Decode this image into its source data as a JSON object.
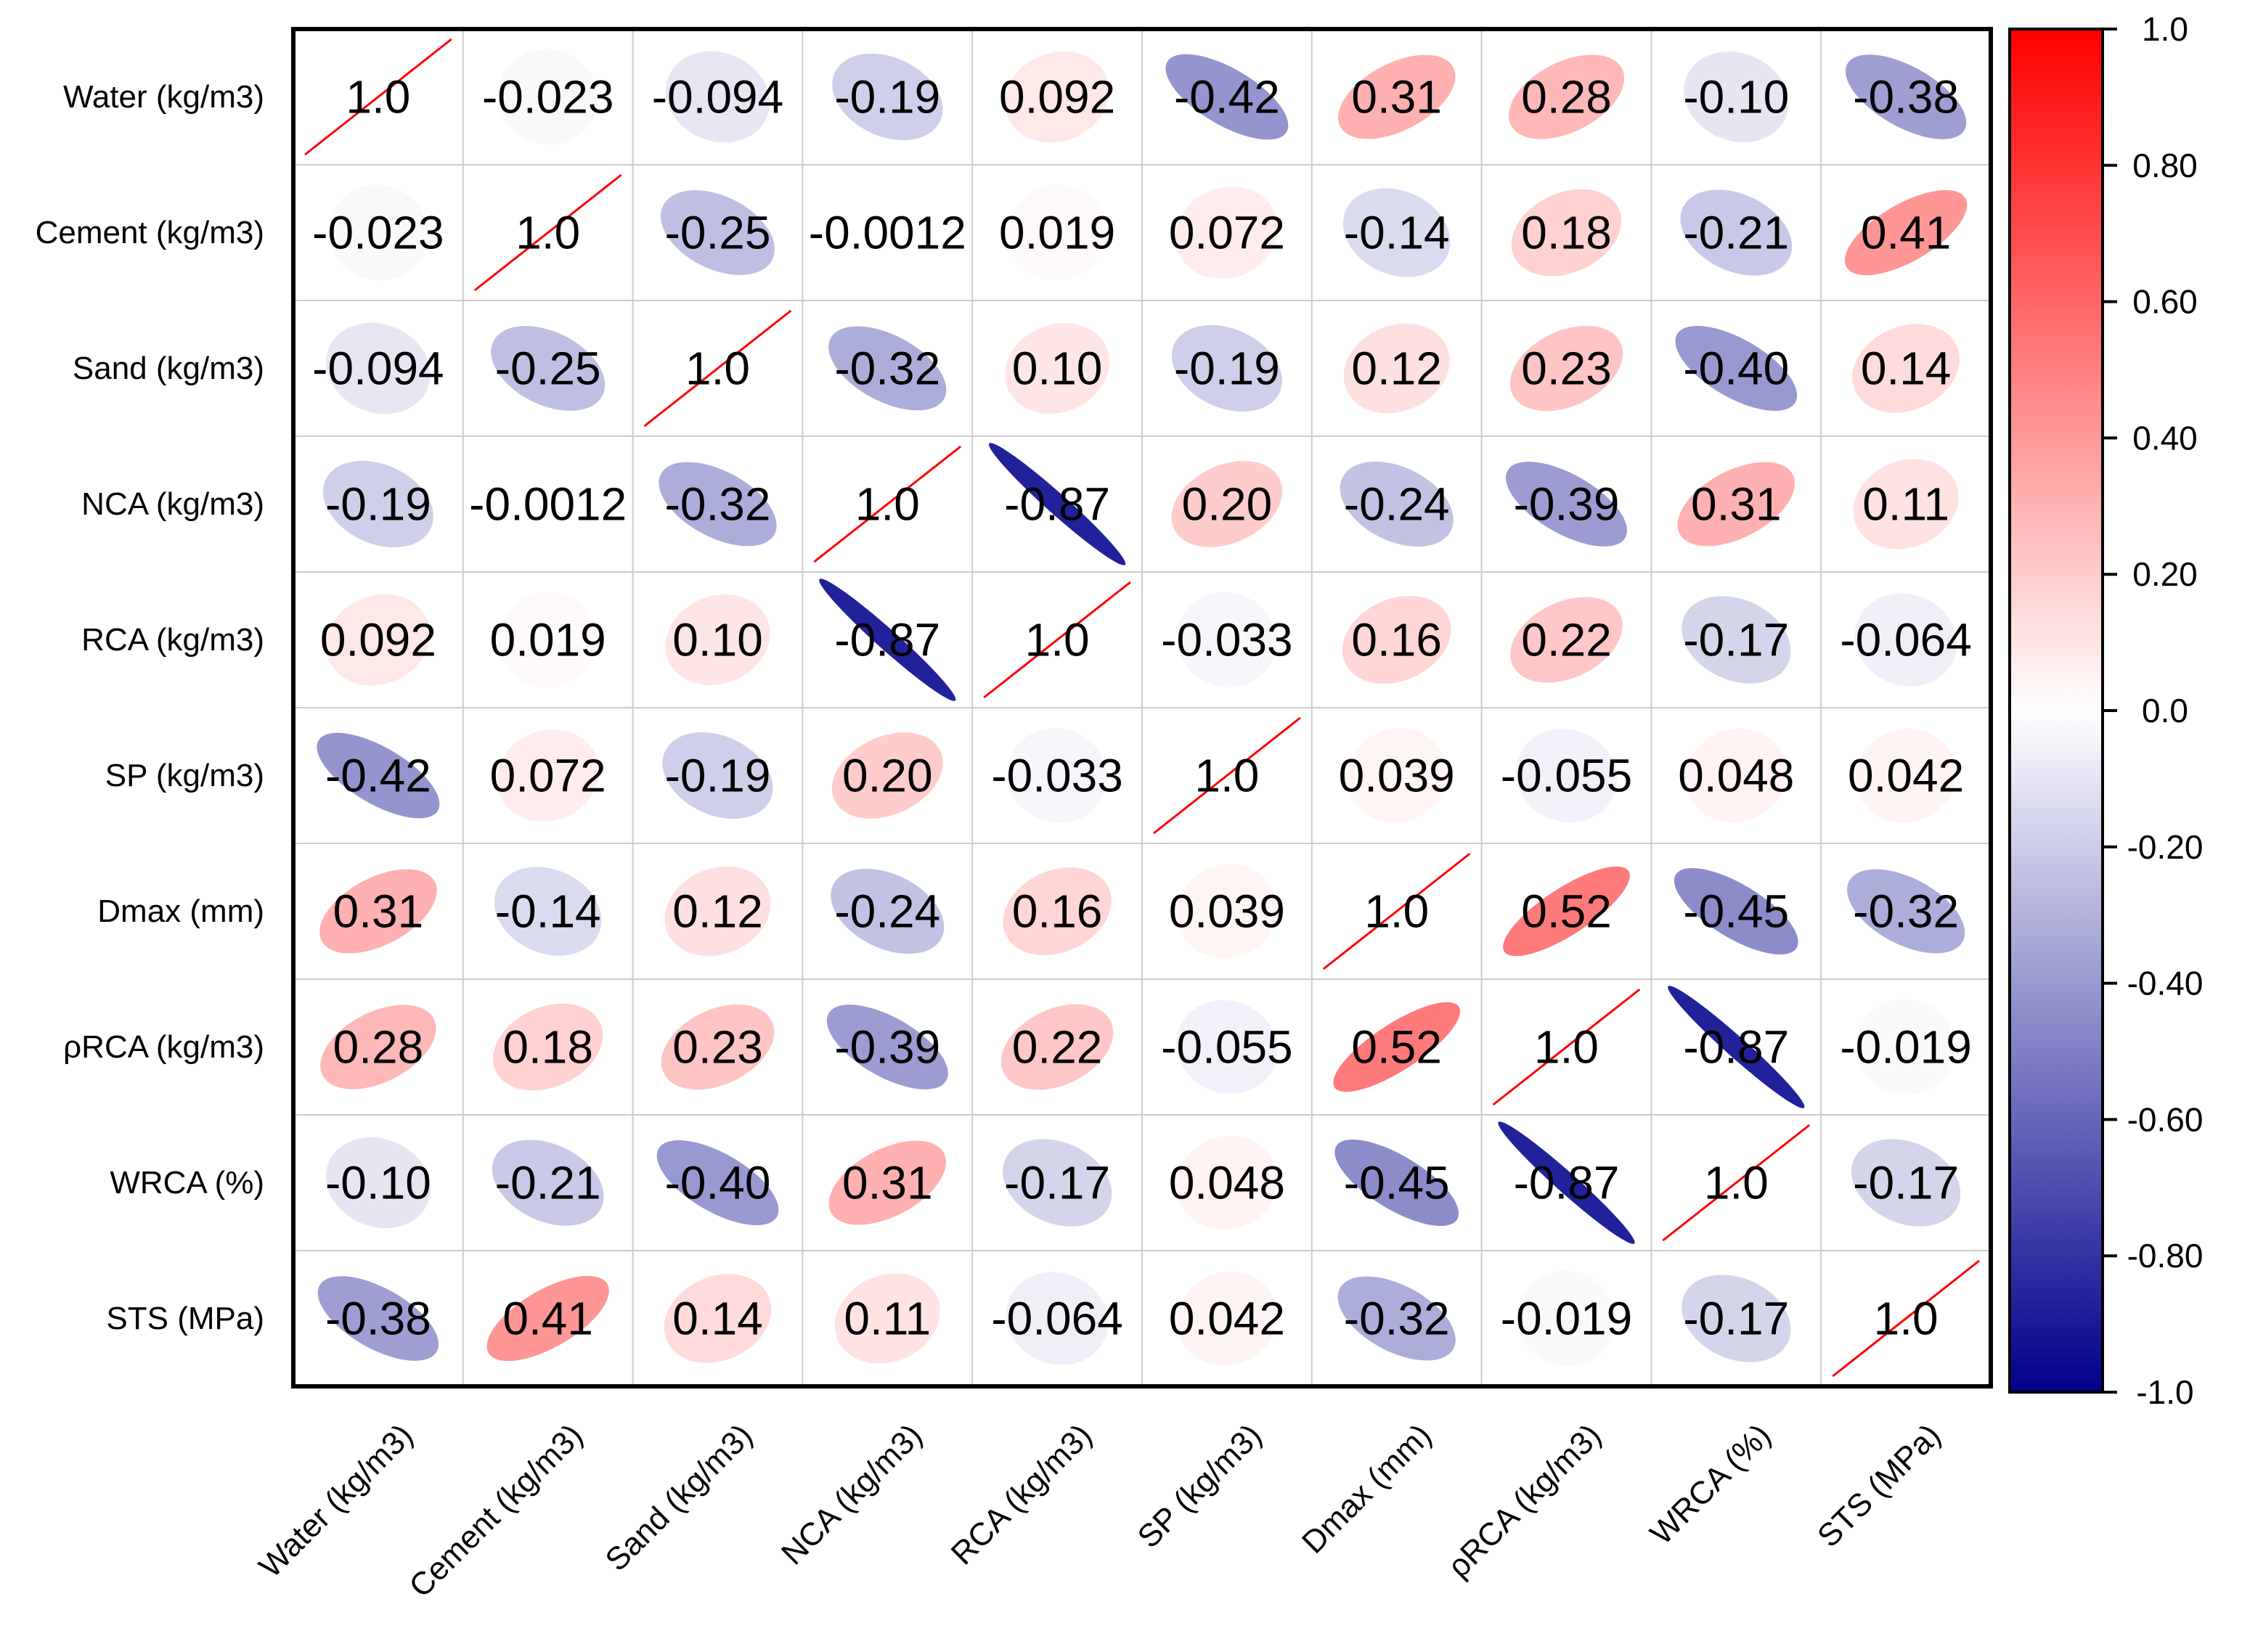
{
  "chart_data": {
    "type": "heatmap",
    "style": "correlation-ellipse",
    "labels": [
      "Water (kg/m3)",
      "Cement (kg/m3)",
      "Sand (kg/m3)",
      "NCA (kg/m3)",
      "RCA (kg/m3)",
      "SP (kg/m3)",
      "Dmax (mm)",
      "ρRCA (kg/m3)",
      "WRCA (%)",
      "STS (MPa)"
    ],
    "matrix": [
      [
        1.0,
        -0.023,
        -0.094,
        -0.19,
        0.092,
        -0.42,
        0.31,
        0.28,
        -0.1,
        -0.38
      ],
      [
        -0.023,
        1.0,
        -0.25,
        -0.0012,
        0.019,
        0.072,
        -0.14,
        0.18,
        -0.21,
        0.41
      ],
      [
        -0.094,
        -0.25,
        1.0,
        -0.32,
        0.1,
        -0.19,
        0.12,
        0.23,
        -0.4,
        0.14
      ],
      [
        -0.19,
        -0.0012,
        -0.32,
        1.0,
        -0.87,
        0.2,
        -0.24,
        -0.39,
        0.31,
        0.11
      ],
      [
        0.092,
        0.019,
        0.1,
        -0.87,
        1.0,
        -0.033,
        0.16,
        0.22,
        -0.17,
        -0.064
      ],
      [
        -0.42,
        0.072,
        -0.19,
        0.2,
        -0.033,
        1.0,
        0.039,
        -0.055,
        0.048,
        0.042
      ],
      [
        0.31,
        -0.14,
        0.12,
        -0.24,
        0.16,
        0.039,
        1.0,
        0.52,
        -0.45,
        -0.32
      ],
      [
        0.28,
        0.18,
        0.23,
        -0.39,
        0.22,
        -0.055,
        0.52,
        1.0,
        -0.87,
        -0.019
      ],
      [
        -0.1,
        -0.21,
        -0.4,
        0.31,
        -0.17,
        0.048,
        -0.45,
        -0.87,
        1.0,
        -0.17
      ],
      [
        -0.38,
        0.41,
        0.14,
        0.11,
        -0.064,
        0.042,
        -0.32,
        -0.019,
        -0.17,
        1.0
      ]
    ],
    "cell_labels": [
      [
        "1.0",
        "-0.023",
        "-0.094",
        "-0.19",
        "0.092",
        "-0.42",
        "0.31",
        "0.28",
        "-0.10",
        "-0.38"
      ],
      [
        "-0.023",
        "1.0",
        "-0.25",
        "-0.0012",
        "0.019",
        "0.072",
        "-0.14",
        "0.18",
        "-0.21",
        "0.41"
      ],
      [
        "-0.094",
        "-0.25",
        "1.0",
        "-0.32",
        "0.10",
        "-0.19",
        "0.12",
        "0.23",
        "-0.40",
        "0.14"
      ],
      [
        "-0.19",
        "-0.0012",
        "-0.32",
        "1.0",
        "-0.87",
        "0.20",
        "-0.24",
        "-0.39",
        "0.31",
        "0.11"
      ],
      [
        "0.092",
        "0.019",
        "0.10",
        "-0.87",
        "1.0",
        "-0.033",
        "0.16",
        "0.22",
        "-0.17",
        "-0.064"
      ],
      [
        "-0.42",
        "0.072",
        "-0.19",
        "0.20",
        "-0.033",
        "1.0",
        "0.039",
        "-0.055",
        "0.048",
        "0.042"
      ],
      [
        "0.31",
        "-0.14",
        "0.12",
        "-0.24",
        "0.16",
        "0.039",
        "1.0",
        "0.52",
        "-0.45",
        "-0.32"
      ],
      [
        "0.28",
        "0.18",
        "0.23",
        "-0.39",
        "0.22",
        "-0.055",
        "0.52",
        "1.0",
        "-0.87",
        "-0.019"
      ],
      [
        "-0.10",
        "-0.21",
        "-0.40",
        "0.31",
        "-0.17",
        "0.048",
        "-0.45",
        "-0.87",
        "1.0",
        "-0.17"
      ],
      [
        "-0.38",
        "0.41",
        "0.14",
        "0.11",
        "-0.064",
        "0.042",
        "-0.32",
        "-0.019",
        "-0.17",
        "1.0"
      ]
    ],
    "colorbar": {
      "range": [
        -1.0,
        1.0
      ],
      "ticks": [
        1.0,
        0.8,
        0.6,
        0.4,
        0.2,
        0.0,
        -0.2,
        -0.4,
        -0.6,
        -0.8,
        -1.0
      ],
      "tick_labels": [
        "1.0",
        "0.80",
        "0.60",
        "0.40",
        "0.20",
        "0.0",
        "-0.20",
        "-0.40",
        "-0.60",
        "-0.80",
        "-1.0"
      ],
      "colors": {
        "negative_end": "#00008b",
        "midpoint": "#ffffff",
        "positive_end": "#ff0000"
      }
    },
    "diagonal_line_color": "#ff0000",
    "grid": true
  }
}
